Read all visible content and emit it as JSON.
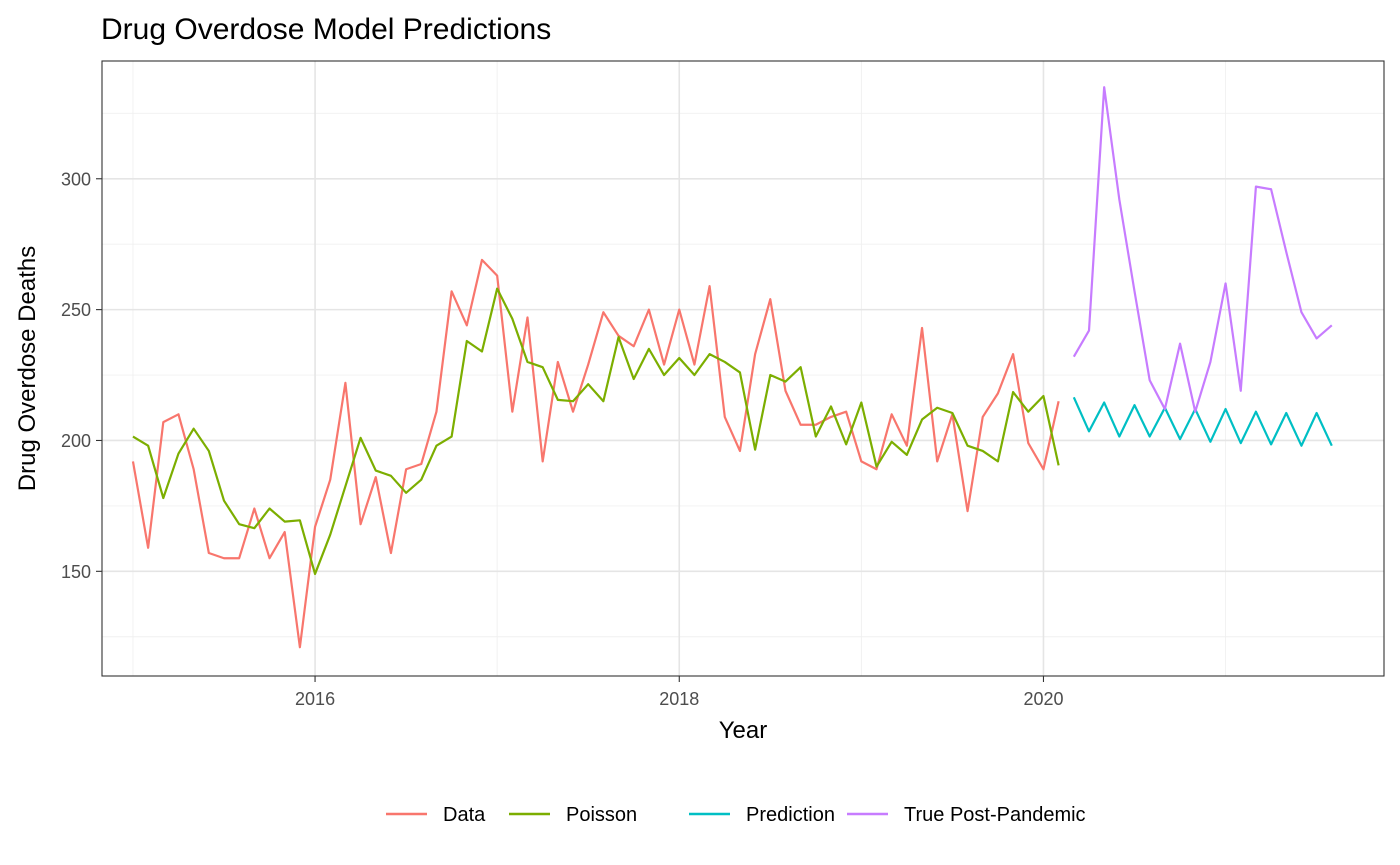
{
  "chart_data": {
    "type": "line",
    "title": "Drug Overdose Model Predictions",
    "xlabel": "Year",
    "ylabel": "Drug Overdose Deaths",
    "xlim": [
      2014.83,
      2021.87
    ],
    "ylim": [
      110,
      345
    ],
    "x_ticks": [
      2016,
      2018,
      2020
    ],
    "x_tick_labels": [
      "2016",
      "2018",
      "2020"
    ],
    "y_ticks": [
      150,
      200,
      250,
      300
    ],
    "y_tick_labels": [
      "150",
      "200",
      "250",
      "300"
    ],
    "grid": true,
    "legend_position": "bottom",
    "series": [
      {
        "name": "Data",
        "color": "#F8766D",
        "start": 2015.0,
        "step": 0.08333,
        "values": [
          192,
          159,
          207,
          210,
          189,
          157,
          155,
          155,
          174,
          155,
          165,
          121,
          167,
          185,
          222,
          168,
          186,
          157,
          189,
          191,
          211,
          257,
          244,
          269,
          263,
          211,
          247,
          192,
          230,
          211,
          229,
          249,
          240,
          236,
          250,
          229,
          250,
          229,
          259,
          209,
          196,
          233,
          254,
          219,
          206,
          206,
          209,
          211,
          192,
          189,
          210,
          198,
          243,
          192,
          210,
          173,
          209,
          218,
          233,
          199,
          189,
          215
        ]
      },
      {
        "name": "Poisson",
        "color": "#7CAE00",
        "start": 2015.0,
        "step": 0.08333,
        "values": [
          201.5,
          198,
          178,
          195,
          204.5,
          196,
          177,
          168,
          166.5,
          174,
          169,
          169.5,
          149,
          164,
          182.5,
          201,
          188.5,
          186.5,
          180,
          185,
          198,
          201.5,
          238,
          234,
          258,
          246.5,
          230,
          228,
          215.5,
          215,
          221.5,
          215,
          239.5,
          223.5,
          235,
          225,
          231.5,
          225,
          233,
          230,
          226,
          196.5,
          225,
          222.5,
          228,
          201.5,
          213,
          198.5,
          214.5,
          190,
          199.5,
          194.5,
          208,
          212.5,
          210.5,
          198,
          196,
          192,
          218.5,
          211,
          217,
          190.5
        ]
      },
      {
        "name": "Prediction",
        "color": "#00BFC4",
        "start": 2020.1667,
        "step": 0.08333,
        "values": [
          216.5,
          203.5,
          214.5,
          201.5,
          213.5,
          201.5,
          212.5,
          200.5,
          212,
          199.5,
          212,
          199,
          211,
          198.5,
          210.5,
          198,
          210.5,
          198
        ]
      },
      {
        "name": "True Post-Pandemic",
        "color": "#C77CFF",
        "start": 2020.1667,
        "step": 0.08333,
        "values": [
          232,
          242,
          335,
          292,
          257,
          223,
          212,
          237,
          211,
          230,
          260,
          219,
          297,
          296,
          272,
          249,
          239,
          244
        ]
      }
    ]
  }
}
